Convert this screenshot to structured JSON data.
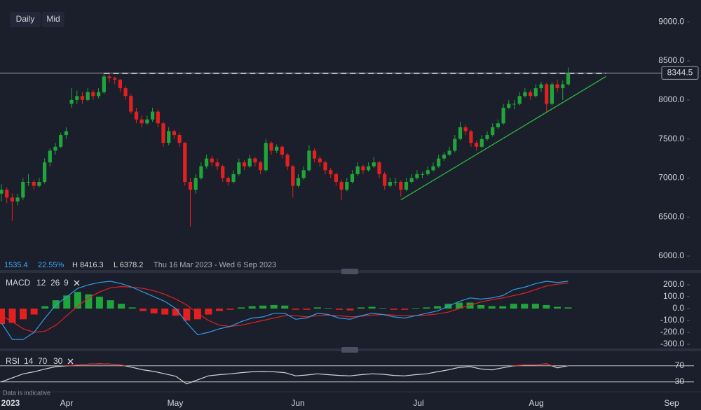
{
  "toolbar": {
    "buttons": [
      "Daily",
      "Mid"
    ]
  },
  "info": {
    "change": "1535.4",
    "change_pct": "22.55%",
    "high": "H 8416.3",
    "low": "L 6378.2",
    "range": "Thu 16 Mar 2023 - Wed 6 Sep 2023"
  },
  "x_labels": [
    "2023",
    "Apr",
    "May",
    "Jun",
    "Jul",
    "Aug",
    "Sep"
  ],
  "footer_note": "Data is indicative",
  "chart_data": [
    {
      "type": "candlestick",
      "up_color": "#1fa53a",
      "down_color": "#e3201f",
      "ylim": [
        5830,
        9280
      ],
      "yticks": [
        {
          "value": 9000,
          "label": "9000.0"
        },
        {
          "value": 8500,
          "label": "8500.0"
        },
        {
          "value": 8000,
          "label": "8000.0"
        },
        {
          "value": 7500,
          "label": "7500.0"
        },
        {
          "value": 7000,
          "label": "7000.0"
        },
        {
          "value": 6500,
          "label": "6500.0"
        },
        {
          "value": 6000,
          "label": "6000.0"
        }
      ],
      "resistance": {
        "level": 8340,
        "from": 19,
        "to": 112,
        "color": "#d9d9d9"
      },
      "trendline": {
        "start": {
          "index": 74,
          "price": 6720
        },
        "end": {
          "index": 112,
          "price": 8300
        },
        "color": "#2db83d"
      },
      "candles": [
        [
          6800,
          6920,
          6700,
          6850
        ],
        [
          6850,
          6880,
          6680,
          6750
        ],
        [
          6750,
          6800,
          6450,
          6700
        ],
        [
          6700,
          6800,
          6650,
          6750
        ],
        [
          6750,
          7000,
          6720,
          6950
        ],
        [
          6950,
          7050,
          6900,
          6950
        ],
        [
          6950,
          6980,
          6850,
          6900
        ],
        [
          6900,
          7000,
          6880,
          6950
        ],
        [
          6950,
          7250,
          6930,
          7200
        ],
        [
          7200,
          7380,
          7150,
          7350
        ],
        [
          7350,
          7450,
          7300,
          7400
        ],
        [
          7400,
          7580,
          7380,
          7550
        ],
        [
          7550,
          7650,
          7500,
          7600
        ],
        [
          7950,
          8150,
          7900,
          8000
        ],
        [
          8000,
          8120,
          7950,
          8050
        ],
        [
          8050,
          8100,
          7950,
          8000
        ],
        [
          8000,
          8150,
          7980,
          8100
        ],
        [
          8100,
          8130,
          8000,
          8050
        ],
        [
          8050,
          8150,
          8020,
          8100
        ],
        [
          8100,
          8330,
          8080,
          8300
        ],
        [
          8300,
          8330,
          8220,
          8280
        ],
        [
          8280,
          8300,
          8200,
          8260
        ],
        [
          8260,
          8270,
          8100,
          8150
        ],
        [
          8150,
          8180,
          8000,
          8050
        ],
        [
          8050,
          8080,
          7820,
          7850
        ],
        [
          7850,
          7900,
          7700,
          7750
        ],
        [
          7750,
          7800,
          7650,
          7700
        ],
        [
          7700,
          7800,
          7680,
          7750
        ],
        [
          7750,
          7900,
          7720,
          7850
        ],
        [
          7850,
          7880,
          7650,
          7700
        ],
        [
          7700,
          7720,
          7400,
          7450
        ],
        [
          7450,
          7650,
          7420,
          7600
        ],
        [
          7600,
          7620,
          7500,
          7550
        ],
        [
          7550,
          7580,
          7400,
          7450
        ],
        [
          7450,
          7460,
          6900,
          6950
        ],
        [
          6950,
          7000,
          6378.2,
          6850
        ],
        [
          6850,
          7050,
          6800,
          7000
        ],
        [
          7000,
          7200,
          6980,
          7150
        ],
        [
          7150,
          7300,
          7120,
          7250
        ],
        [
          7250,
          7280,
          7150,
          7200
        ],
        [
          7200,
          7250,
          7100,
          7150
        ],
        [
          7150,
          7170,
          6950,
          7000
        ],
        [
          7000,
          7020,
          6900,
          6950
        ],
        [
          6950,
          7100,
          6930,
          7050
        ],
        [
          7050,
          7250,
          7030,
          7200
        ],
        [
          7200,
          7230,
          7100,
          7150
        ],
        [
          7150,
          7300,
          7130,
          7250
        ],
        [
          7250,
          7270,
          7150,
          7200
        ],
        [
          7200,
          7220,
          7050,
          7100
        ],
        [
          7100,
          7500,
          7080,
          7450
        ],
        [
          7450,
          7470,
          7300,
          7350
        ],
        [
          7350,
          7430,
          7320,
          7400
        ],
        [
          7400,
          7420,
          7250,
          7300
        ],
        [
          7300,
          7320,
          7100,
          7150
        ],
        [
          7150,
          7170,
          6750,
          6900
        ],
        [
          6900,
          7050,
          6880,
          7000
        ],
        [
          7000,
          7150,
          6980,
          7100
        ],
        [
          7100,
          7420,
          7080,
          7350
        ],
        [
          7350,
          7380,
          7200,
          7250
        ],
        [
          7250,
          7280,
          7150,
          7200
        ],
        [
          7200,
          7220,
          7050,
          7100
        ],
        [
          7100,
          7130,
          7000,
          7050
        ],
        [
          7050,
          7070,
          6900,
          6950
        ],
        [
          6950,
          6980,
          6720,
          6850
        ],
        [
          6850,
          7000,
          6830,
          6950
        ],
        [
          6950,
          7100,
          6930,
          7050
        ],
        [
          7050,
          7200,
          7030,
          7150
        ],
        [
          7150,
          7170,
          7050,
          7100
        ],
        [
          7100,
          7200,
          7080,
          7150
        ],
        [
          7150,
          7270,
          7130,
          7200
        ],
        [
          7200,
          7220,
          7000,
          7050
        ],
        [
          7050,
          7080,
          6850,
          6900
        ],
        [
          6900,
          7000,
          6880,
          6950
        ],
        [
          6950,
          7000,
          6900,
          6950
        ],
        [
          6950,
          6970,
          6760,
          6850
        ],
        [
          6850,
          7000,
          6830,
          6950
        ],
        [
          6950,
          7050,
          6930,
          7000
        ],
        [
          7000,
          7100,
          6980,
          7050
        ],
        [
          7050,
          7080,
          7000,
          7050
        ],
        [
          7050,
          7150,
          7030,
          7100
        ],
        [
          7100,
          7200,
          7080,
          7150
        ],
        [
          7150,
          7300,
          7130,
          7250
        ],
        [
          7250,
          7330,
          7220,
          7300
        ],
        [
          7300,
          7400,
          7280,
          7350
        ],
        [
          7350,
          7550,
          7330,
          7500
        ],
        [
          7500,
          7720,
          7480,
          7650
        ],
        [
          7650,
          7680,
          7550,
          7600
        ],
        [
          7600,
          7620,
          7400,
          7450
        ],
        [
          7450,
          7480,
          7350,
          7400
        ],
        [
          7400,
          7550,
          7380,
          7500
        ],
        [
          7500,
          7600,
          7480,
          7550
        ],
        [
          7550,
          7700,
          7530,
          7650
        ],
        [
          7650,
          7750,
          7630,
          7700
        ],
        [
          7700,
          7950,
          7680,
          7900
        ],
        [
          7900,
          8000,
          7880,
          7950
        ],
        [
          7950,
          8000,
          7880,
          7950
        ],
        [
          7950,
          8100,
          7930,
          8050
        ],
        [
          8050,
          8150,
          8030,
          8100
        ],
        [
          8100,
          8130,
          8000,
          8050
        ],
        [
          8050,
          8200,
          8030,
          8150
        ],
        [
          8150,
          8230,
          8100,
          8200
        ],
        [
          8200,
          8220,
          7850,
          7950
        ],
        [
          7950,
          8230,
          7930,
          8200
        ],
        [
          8200,
          8260,
          8100,
          8150
        ],
        [
          8150,
          8250,
          8000,
          8200
        ],
        [
          8200,
          8416.3,
          8180,
          8344.5
        ]
      ]
    },
    {
      "type": "macd",
      "label": "MACD",
      "params": [
        12,
        26,
        9
      ],
      "ylim": [
        -347,
        271
      ],
      "yticks": [
        {
          "value": 200,
          "label": "200.0"
        },
        {
          "value": 100,
          "label": "100.0"
        },
        {
          "value": 0,
          "label": "0.0"
        },
        {
          "value": -100,
          "label": "-100.0"
        },
        {
          "value": -200,
          "label": "-200.0"
        },
        {
          "value": -300,
          "label": "-300.0"
        }
      ],
      "series": [
        {
          "name": "MACD",
          "color": "#2f9be8",
          "values": [
            -120,
            -260,
            -260,
            -200,
            -80,
            30,
            100,
            170,
            200,
            220,
            230,
            210,
            180,
            140,
            100,
            60,
            0,
            -120,
            -220,
            -200,
            -170,
            -150,
            -110,
            -80,
            -70,
            -40,
            -40,
            -90,
            -80,
            -40,
            -50,
            -80,
            -90,
            -60,
            -40,
            -50,
            -70,
            -80,
            -60,
            -40,
            -20,
            20,
            60,
            90,
            80,
            90,
            110,
            160,
            180,
            210,
            230,
            220,
            230
          ]
        },
        {
          "name": "Signal",
          "color": "#e3201f",
          "values": [
            -60,
            -110,
            -170,
            -200,
            -190,
            -140,
            -60,
            20,
            90,
            140,
            175,
            185,
            180,
            170,
            150,
            120,
            80,
            30,
            -40,
            -100,
            -140,
            -150,
            -140,
            -120,
            -100,
            -80,
            -60,
            -60,
            -70,
            -60,
            -55,
            -60,
            -70,
            -65,
            -55,
            -50,
            -55,
            -60,
            -60,
            -55,
            -45,
            -30,
            0,
            30,
            55,
            75,
            90,
            110,
            130,
            160,
            190,
            205,
            215
          ]
        },
        {
          "name": "Histogram",
          "up_color": "#1fa53a",
          "down_color": "#e3201f",
          "values": [
            -130,
            -120,
            -90,
            -50,
            20,
            70,
            110,
            140,
            120,
            100,
            70,
            40,
            10,
            -20,
            -40,
            -50,
            -60,
            -100,
            -90,
            -50,
            -20,
            -10,
            10,
            20,
            25,
            30,
            25,
            -10,
            -10,
            10,
            5,
            -10,
            -15,
            10,
            15,
            5,
            -10,
            -10,
            5,
            10,
            20,
            40,
            50,
            50,
            30,
            20,
            20,
            40,
            40,
            40,
            30,
            15,
            10
          ]
        }
      ]
    },
    {
      "type": "line",
      "label": "RSI",
      "params": [
        14,
        70,
        30
      ],
      "ylim": [
        14,
        101
      ],
      "yticks": [
        70,
        30
      ],
      "overbought_color": "#e3201f",
      "series": [
        {
          "name": "RSI",
          "color": "#d0d2d6",
          "values": [
            30,
            40,
            50,
            55,
            62,
            68,
            70,
            72,
            74,
            75,
            74,
            72,
            66,
            60,
            56,
            50,
            44,
            25,
            35,
            45,
            48,
            50,
            53,
            55,
            56,
            55,
            53,
            45,
            47,
            50,
            48,
            46,
            45,
            48,
            50,
            49,
            46,
            45,
            48,
            50,
            55,
            60,
            66,
            68,
            62,
            60,
            65,
            70,
            72,
            72,
            75,
            65,
            70
          ]
        }
      ]
    }
  ]
}
